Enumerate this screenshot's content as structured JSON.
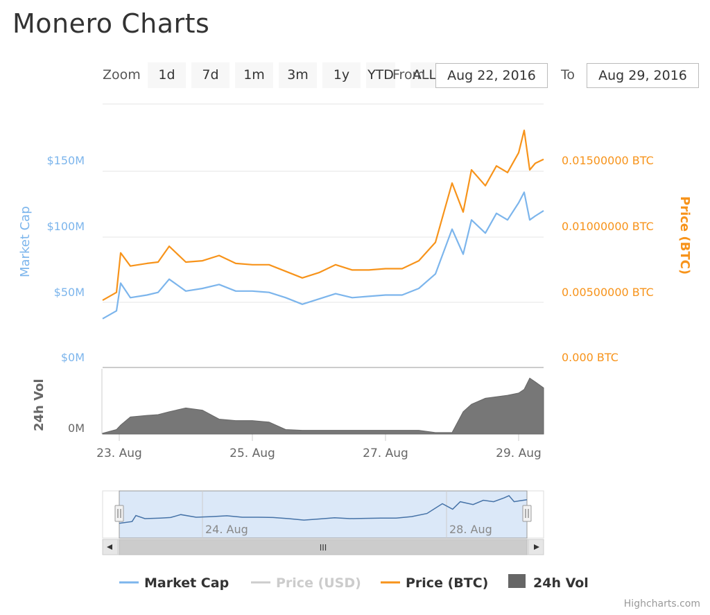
{
  "page": {
    "title": "Monero Charts",
    "credit": "Highcharts.com"
  },
  "range_selector": {
    "zoom_label": "Zoom",
    "buttons": [
      "1d",
      "7d",
      "1m",
      "3m",
      "1y",
      "YTD",
      "ALL"
    ],
    "from_label": "From",
    "from_value": "Aug 22, 2016",
    "to_label": "To",
    "to_value": "Aug 29, 2016"
  },
  "colors": {
    "market_cap": "#7cb5ec",
    "price_usd": "#cccccc",
    "price_btc": "#f7931a",
    "volume": "#777777",
    "navigator_fill": "#dbe8f8"
  },
  "chart_data": {
    "type": "line",
    "xaxis": {
      "ticks": [
        "23. Aug",
        "25. Aug",
        "27. Aug",
        "29. Aug"
      ],
      "range": [
        "2016-08-22T18:00",
        "2016-08-29T09:00"
      ]
    },
    "yaxis_left": {
      "title": "Market Cap",
      "ticks": [
        "$0M",
        "$50M",
        "$100M",
        "$150M"
      ],
      "range": [
        0,
        200
      ]
    },
    "yaxis_right": {
      "title": "Price (BTC)",
      "ticks": [
        "0.000 BTC",
        "0.00500000 BTC",
        "0.01000000 BTC",
        "0.01500000 BTC"
      ],
      "range": [
        0,
        0.02
      ]
    },
    "volume_axis": {
      "title": "24h Vol",
      "ticks": [
        "0M"
      ]
    },
    "series": [
      {
        "name": "Market Cap",
        "unit": "$M",
        "x": [
          "2016-08-22T18:00",
          "2016-08-22T23:00",
          "2016-08-23T00:30",
          "2016-08-23T04:00",
          "2016-08-23T10:00",
          "2016-08-23T14:00",
          "2016-08-23T18:00",
          "2016-08-24T00:00",
          "2016-08-24T06:00",
          "2016-08-24T12:00",
          "2016-08-24T18:00",
          "2016-08-25T00:00",
          "2016-08-25T06:00",
          "2016-08-25T12:00",
          "2016-08-25T18:00",
          "2016-08-26T00:00",
          "2016-08-26T06:00",
          "2016-08-26T12:00",
          "2016-08-26T18:00",
          "2016-08-27T00:00",
          "2016-08-27T06:00",
          "2016-08-27T12:00",
          "2016-08-27T18:00",
          "2016-08-28T00:00",
          "2016-08-28T04:00",
          "2016-08-28T07:00",
          "2016-08-28T12:00",
          "2016-08-28T16:00",
          "2016-08-28T20:00",
          "2016-08-29T00:00",
          "2016-08-29T02:00",
          "2016-08-29T04:00",
          "2016-08-29T06:00",
          "2016-08-29T09:00"
        ],
        "values": [
          37,
          43,
          64,
          53,
          55,
          57,
          67,
          58,
          60,
          63,
          58,
          58,
          57,
          53,
          48,
          52,
          56,
          53,
          54,
          55,
          55,
          60,
          71,
          105,
          86,
          112,
          102,
          117,
          112,
          125,
          133,
          112,
          115,
          119
        ]
      },
      {
        "name": "Price (USD)",
        "visible": false,
        "values": []
      },
      {
        "name": "Price (BTC)",
        "unit": "BTC",
        "x": [
          "2016-08-22T18:00",
          "2016-08-22T23:00",
          "2016-08-23T00:30",
          "2016-08-23T04:00",
          "2016-08-23T10:00",
          "2016-08-23T14:00",
          "2016-08-23T18:00",
          "2016-08-24T00:00",
          "2016-08-24T06:00",
          "2016-08-24T12:00",
          "2016-08-24T18:00",
          "2016-08-25T00:00",
          "2016-08-25T06:00",
          "2016-08-25T12:00",
          "2016-08-25T18:00",
          "2016-08-26T00:00",
          "2016-08-26T06:00",
          "2016-08-26T12:00",
          "2016-08-26T18:00",
          "2016-08-27T00:00",
          "2016-08-27T06:00",
          "2016-08-27T12:00",
          "2016-08-27T18:00",
          "2016-08-28T00:00",
          "2016-08-28T04:00",
          "2016-08-28T07:00",
          "2016-08-28T12:00",
          "2016-08-28T16:00",
          "2016-08-28T20:00",
          "2016-08-29T00:00",
          "2016-08-29T02:00",
          "2016-08-29T04:00",
          "2016-08-29T06:00",
          "2016-08-29T09:00"
        ],
        "values": [
          0.0051,
          0.0057,
          0.0087,
          0.0077,
          0.0079,
          0.008,
          0.0092,
          0.008,
          0.0081,
          0.0085,
          0.0079,
          0.0078,
          0.0078,
          0.0073,
          0.0068,
          0.0072,
          0.0078,
          0.0074,
          0.0074,
          0.0075,
          0.0075,
          0.0081,
          0.0095,
          0.014,
          0.0118,
          0.015,
          0.0138,
          0.0153,
          0.0148,
          0.0163,
          0.018,
          0.015,
          0.0155,
          0.0158
        ]
      },
      {
        "name": "24h Vol",
        "type": "area",
        "x": [
          "2016-08-22T18:00",
          "2016-08-22T23:00",
          "2016-08-23T00:30",
          "2016-08-23T04:00",
          "2016-08-23T10:00",
          "2016-08-23T14:00",
          "2016-08-23T18:00",
          "2016-08-24T00:00",
          "2016-08-24T06:00",
          "2016-08-24T12:00",
          "2016-08-24T18:00",
          "2016-08-25T00:00",
          "2016-08-25T06:00",
          "2016-08-25T12:00",
          "2016-08-25T18:00",
          "2016-08-26T00:00",
          "2016-08-26T06:00",
          "2016-08-26T12:00",
          "2016-08-26T18:00",
          "2016-08-27T00:00",
          "2016-08-27T06:00",
          "2016-08-27T12:00",
          "2016-08-27T18:00",
          "2016-08-28T00:00",
          "2016-08-28T04:00",
          "2016-08-28T07:00",
          "2016-08-28T12:00",
          "2016-08-28T16:00",
          "2016-08-28T20:00",
          "2016-08-29T00:00",
          "2016-08-29T02:00",
          "2016-08-29T04:00",
          "2016-08-29T06:00",
          "2016-08-29T09:00"
        ],
        "values": [
          1,
          6,
          12,
          23,
          25,
          26,
          30,
          35,
          32,
          20,
          18,
          18,
          16,
          6,
          5,
          5,
          5,
          5,
          5,
          5,
          5,
          5,
          2,
          2,
          30,
          40,
          48,
          50,
          52,
          55,
          60,
          75,
          70,
          62
        ]
      }
    ],
    "navigator": {
      "tick_labels": [
        "24. Aug",
        "28. Aug"
      ],
      "scrollbar_label": "III"
    },
    "legend": [
      "Market Cap",
      "Price (USD)",
      "Price (BTC)",
      "24h Vol"
    ]
  }
}
